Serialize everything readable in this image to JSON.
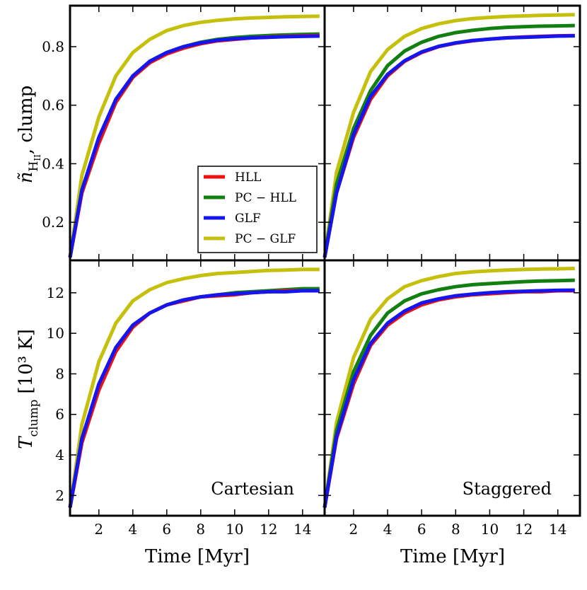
{
  "chart_data": {
    "type": "line",
    "x": [
      0.3,
      1,
      2,
      3,
      4,
      5,
      6,
      7,
      8,
      9,
      10,
      11,
      12,
      13,
      14,
      15
    ],
    "xlabel": "Time [Myr]",
    "xlim": [
      0.3,
      15.3
    ],
    "xticks": [
      "2",
      "4",
      "6",
      "8",
      "10",
      "12",
      "14"
    ],
    "colors": {
      "HLL": "#ee1111",
      "PC − HLL": "#118011",
      "GLF": "#1515ee",
      "PC − GLF": "#c4c00c"
    },
    "legend": [
      "HLL",
      "PC − HLL",
      "GLF",
      "PC − GLF"
    ],
    "legend_location": "lower-right of top-left panel",
    "rows": [
      {
        "ylabel": "ñ_HII, clump",
        "ylabel_main": "ñ",
        "ylabel_sub": "H",
        "ylabel_subsub": "II",
        "ylabel_suffix": ", clump",
        "ylim": [
          0.07,
          0.94
        ],
        "yticks": [
          "0.2",
          "0.4",
          "0.6",
          "0.8"
        ]
      },
      {
        "ylabel": "T_clump [10³ K]",
        "ylabel_main": "T",
        "ylabel_sub": "clump",
        "ylabel_suffix": "[10³ K]",
        "ylim": [
          1.0,
          13.6
        ],
        "yticks": [
          "2",
          "4",
          "6",
          "8",
          "10",
          "12"
        ]
      }
    ],
    "panels": [
      {
        "row": 0,
        "col": 0,
        "annotation": "",
        "series": [
          {
            "name": "HLL",
            "values": [
              0.08,
              0.3,
              0.47,
              0.61,
              0.695,
              0.745,
              0.775,
              0.795,
              0.81,
              0.82,
              0.825,
              0.83,
              0.833,
              0.835,
              0.837,
              0.838
            ]
          },
          {
            "name": "PC − HLL",
            "values": [
              0.08,
              0.31,
              0.475,
              0.61,
              0.695,
              0.75,
              0.78,
              0.8,
              0.815,
              0.825,
              0.831,
              0.835,
              0.838,
              0.84,
              0.842,
              0.843
            ]
          },
          {
            "name": "GLF",
            "values": [
              0.08,
              0.31,
              0.49,
              0.62,
              0.7,
              0.75,
              0.78,
              0.8,
              0.813,
              0.822,
              0.827,
              0.83,
              0.832,
              0.834,
              0.835,
              0.836
            ]
          },
          {
            "name": "PC − GLF",
            "values": [
              0.08,
              0.36,
              0.56,
              0.7,
              0.78,
              0.825,
              0.855,
              0.872,
              0.883,
              0.89,
              0.895,
              0.898,
              0.9,
              0.902,
              0.903,
              0.904
            ]
          }
        ]
      },
      {
        "row": 0,
        "col": 1,
        "annotation": "",
        "series": [
          {
            "name": "HLL",
            "values": [
              0.08,
              0.3,
              0.49,
              0.62,
              0.7,
              0.75,
              0.78,
              0.8,
              0.812,
              0.82,
              0.826,
              0.83,
              0.833,
              0.835,
              0.837,
              0.838
            ]
          },
          {
            "name": "PC − HLL",
            "values": [
              0.08,
              0.33,
              0.52,
              0.65,
              0.735,
              0.785,
              0.815,
              0.835,
              0.848,
              0.856,
              0.862,
              0.866,
              0.868,
              0.87,
              0.871,
              0.872
            ]
          },
          {
            "name": "GLF",
            "values": [
              0.08,
              0.3,
              0.5,
              0.63,
              0.705,
              0.752,
              0.782,
              0.801,
              0.813,
              0.821,
              0.826,
              0.83,
              0.832,
              0.834,
              0.836,
              0.837
            ]
          },
          {
            "name": "PC − GLF",
            "values": [
              0.08,
              0.37,
              0.575,
              0.715,
              0.79,
              0.835,
              0.862,
              0.878,
              0.889,
              0.896,
              0.9,
              0.903,
              0.905,
              0.907,
              0.908,
              0.909
            ]
          }
        ]
      },
      {
        "row": 1,
        "col": 0,
        "annotation": "Cartesian",
        "series": [
          {
            "name": "HLL",
            "values": [
              1.4,
              4.6,
              7.2,
              9.1,
              10.3,
              11.0,
              11.4,
              11.6,
              11.8,
              11.85,
              11.9,
              12.0,
              12.05,
              12.1,
              12.1,
              12.1
            ]
          },
          {
            "name": "PC − HLL",
            "values": [
              1.4,
              4.8,
              7.4,
              9.2,
              10.4,
              11.0,
              11.4,
              11.65,
              11.8,
              11.9,
              12.0,
              12.05,
              12.1,
              12.15,
              12.2,
              12.2
            ]
          },
          {
            "name": "GLF",
            "values": [
              1.4,
              4.8,
              7.5,
              9.3,
              10.4,
              11.0,
              11.4,
              11.65,
              11.8,
              11.9,
              11.95,
              12.0,
              12.05,
              12.05,
              12.1,
              12.1
            ]
          },
          {
            "name": "PC − GLF",
            "values": [
              1.4,
              5.5,
              8.6,
              10.5,
              11.6,
              12.15,
              12.5,
              12.7,
              12.85,
              12.95,
              13.0,
              13.05,
              13.1,
              13.12,
              13.15,
              13.15
            ]
          }
        ]
      },
      {
        "row": 1,
        "col": 1,
        "annotation": "Staggered",
        "series": [
          {
            "name": "HLL",
            "values": [
              1.4,
              4.8,
              7.5,
              9.4,
              10.4,
              11.0,
              11.4,
              11.65,
              11.8,
              11.9,
              11.95,
              12.0,
              12.05,
              12.05,
              12.1,
              12.1
            ]
          },
          {
            "name": "PC − HLL",
            "values": [
              1.4,
              5.2,
              8.1,
              9.9,
              11.0,
              11.6,
              11.95,
              12.15,
              12.3,
              12.4,
              12.45,
              12.5,
              12.55,
              12.58,
              12.6,
              12.62
            ]
          },
          {
            "name": "GLF",
            "values": [
              1.4,
              4.9,
              7.7,
              9.5,
              10.5,
              11.1,
              11.5,
              11.7,
              11.85,
              11.93,
              12.0,
              12.05,
              12.07,
              12.1,
              12.12,
              12.13
            ]
          },
          {
            "name": "PC − GLF",
            "values": [
              1.4,
              5.6,
              8.8,
              10.7,
              11.7,
              12.3,
              12.6,
              12.8,
              12.95,
              13.03,
              13.08,
              13.12,
              13.15,
              13.17,
              13.18,
              13.2
            ]
          }
        ]
      }
    ]
  }
}
